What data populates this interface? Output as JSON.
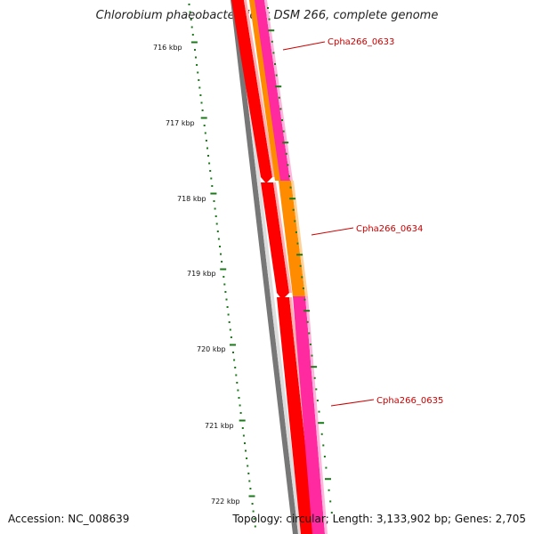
{
  "title": "Chlorobium phaeobacteroides DSM 266, complete genome",
  "footer": {
    "accession": "Accession: NC_008639",
    "topology": "Topology: circular; Length: 3,133,902 bp; Genes: 2,705"
  },
  "ruler": {
    "labels": [
      "716 kbp",
      "717 kbp",
      "718 kbp",
      "719 kbp",
      "720 kbp",
      "721 kbp",
      "722 kbp"
    ]
  },
  "genes": [
    {
      "name": "Cpha266_0633",
      "color": "#ff2aa0"
    },
    {
      "name": "Cpha266_0634",
      "color": "#ff8c00"
    },
    {
      "name": "Cpha266_0635",
      "color": "#ff2aa0"
    }
  ],
  "colors": {
    "backbone": "#777777",
    "red_track": "#ff0000",
    "tick": "#1a7a1a",
    "label": "#cc0000"
  }
}
